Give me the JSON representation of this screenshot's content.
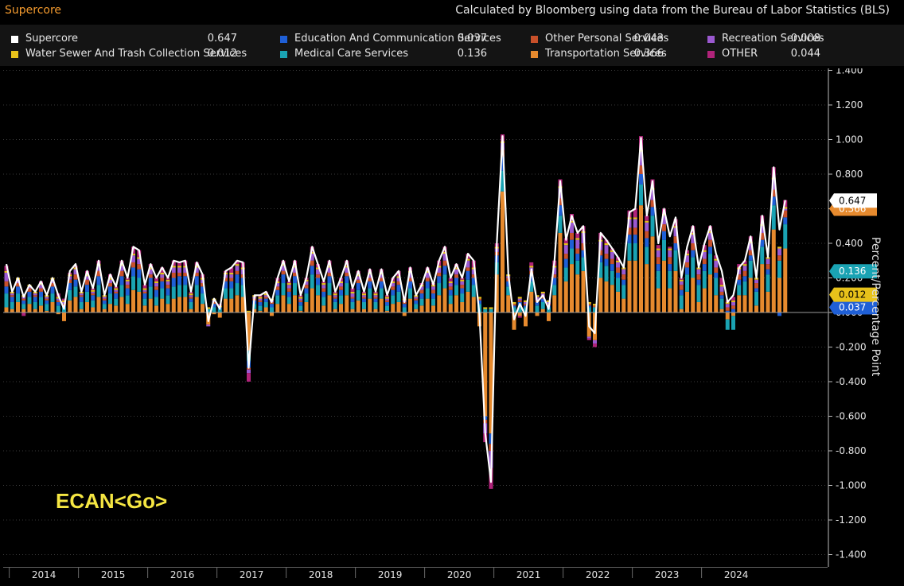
{
  "header": {
    "title": "Supercore",
    "subtitle": "Calculated by Bloomberg using data from the Bureau of Labor Statistics (BLS)"
  },
  "legend": [
    {
      "label": "Supercore",
      "value": "0.647",
      "color": "#ffffff"
    },
    {
      "label": "Education And Communication Services",
      "value": "0.037",
      "color": "#1f5fd6"
    },
    {
      "label": "Other Personal Services",
      "value": "0.043",
      "color": "#c8502a"
    },
    {
      "label": "Recreation Services",
      "value": "0.008",
      "color": "#9b59d0"
    },
    {
      "label": "Water Sewer And Trash Collection Services",
      "value": "0.012",
      "color": "#e8c21a"
    },
    {
      "label": "Medical Care Services",
      "value": "0.136",
      "color": "#1aa3b3"
    },
    {
      "label": "Transportation Services",
      "value": "0.366",
      "color": "#e68a2e"
    },
    {
      "label": "OTHER",
      "value": "0.044",
      "color": "#b0237a"
    }
  ],
  "watermark": "ECAN<Go>",
  "chart_data": {
    "type": "bar",
    "title": "Supercore",
    "ylabel": "Percent/Percentage Point",
    "ylim": [
      -1.4,
      1.4
    ],
    "yticks": [
      "1.400",
      "1.200",
      "1.000",
      "0.800",
      "0.600",
      "0.400",
      "0.200",
      "0.000",
      "-0.200",
      "-0.400",
      "-0.600",
      "-0.800",
      "-1.000",
      "-1.200",
      "-1.400"
    ],
    "x_tick_labels": [
      "2014",
      "2015",
      "2016",
      "2017",
      "2018",
      "2019",
      "2020",
      "2021",
      "2022",
      "2023",
      "2024"
    ],
    "x_start": "2013-12",
    "last_values": {
      "Supercore": 0.647,
      "Transportation Services": 0.366,
      "Medical Care Services": 0.136,
      "Water Sewer And Trash Collection Services": 0.012,
      "Education And Communication Services": 0.037
    },
    "supercore": [
      0.28,
      0.12,
      0.2,
      0.09,
      0.16,
      0.12,
      0.18,
      0.1,
      0.2,
      0.1,
      0.02,
      0.24,
      0.28,
      0.12,
      0.24,
      0.14,
      0.3,
      0.1,
      0.22,
      0.15,
      0.3,
      0.2,
      0.38,
      0.36,
      0.16,
      0.28,
      0.2,
      0.26,
      0.2,
      0.3,
      0.29,
      0.3,
      0.12,
      0.29,
      0.22,
      -0.05,
      0.08,
      0.02,
      0.24,
      0.26,
      0.3,
      0.29,
      -0.32,
      0.1,
      0.1,
      0.12,
      0.06,
      0.2,
      0.3,
      0.18,
      0.3,
      0.1,
      0.2,
      0.38,
      0.28,
      0.18,
      0.3,
      0.12,
      0.2,
      0.3,
      0.14,
      0.24,
      0.12,
      0.25,
      0.12,
      0.25,
      0.1,
      0.2,
      0.24,
      0.06,
      0.26,
      0.1,
      0.16,
      0.26,
      0.16,
      0.3,
      0.38,
      0.2,
      0.28,
      0.2,
      0.34,
      0.3,
      -0.01,
      -0.7,
      -0.98,
      0.4,
      1.02,
      0.22,
      -0.04,
      0.05,
      -0.02,
      0.25,
      0.06,
      0.1,
      0.02,
      0.3,
      0.76,
      0.42,
      0.56,
      0.46,
      0.5,
      -0.08,
      -0.12,
      0.46,
      0.42,
      0.37,
      0.32,
      0.26,
      0.58,
      0.6,
      1.01,
      0.56,
      0.76,
      0.4,
      0.6,
      0.44,
      0.55,
      0.2,
      0.38,
      0.5,
      0.26,
      0.4,
      0.5,
      0.34,
      0.24,
      0.06,
      0.1,
      0.26,
      0.3,
      0.44,
      0.2,
      0.56,
      0.32,
      0.84,
      0.48,
      0.65
    ],
    "series": [
      {
        "name": "Transportation Services",
        "color": "#e68a2e",
        "values": [
          0.03,
          0.02,
          0.06,
          0.02,
          0.05,
          0.02,
          0.04,
          0.01,
          0.06,
          -0.01,
          -0.05,
          0.07,
          0.09,
          0.02,
          0.06,
          0.03,
          0.09,
          0.02,
          0.05,
          0.04,
          0.09,
          0.05,
          0.13,
          0.12,
          0.04,
          0.08,
          0.04,
          0.08,
          0.05,
          0.08,
          0.09,
          0.09,
          0.02,
          0.09,
          0.05,
          -0.07,
          -0.01,
          -0.03,
          0.08,
          0.08,
          0.1,
          0.09,
          -0.22,
          0.02,
          0.01,
          0.03,
          -0.02,
          0.05,
          0.1,
          0.05,
          0.1,
          0.01,
          0.06,
          0.14,
          0.1,
          0.04,
          0.1,
          0.02,
          0.05,
          0.1,
          0.02,
          0.07,
          0.02,
          0.08,
          0.02,
          0.08,
          0.01,
          0.05,
          0.06,
          -0.02,
          0.08,
          0.02,
          0.04,
          0.08,
          0.04,
          0.1,
          0.14,
          0.05,
          0.1,
          0.06,
          0.12,
          0.09,
          -0.08,
          -0.6,
          -0.7,
          0.22,
          0.7,
          0.1,
          -0.1,
          -0.02,
          -0.08,
          0.12,
          -0.02,
          0.02,
          -0.05,
          0.1,
          0.46,
          0.18,
          0.28,
          0.22,
          0.24,
          -0.14,
          -0.16,
          0.2,
          0.18,
          0.16,
          0.12,
          0.08,
          0.3,
          0.3,
          0.62,
          0.28,
          0.44,
          0.14,
          0.3,
          0.14,
          0.24,
          0.02,
          0.12,
          0.2,
          0.06,
          0.14,
          0.22,
          0.1,
          0.02,
          -0.04,
          -0.02,
          0.1,
          0.1,
          0.2,
          0.04,
          0.28,
          0.12,
          0.48,
          0.2,
          0.37
        ]
      },
      {
        "name": "Medical Care Services",
        "color": "#1aa3b3",
        "values": [
          0.08,
          0.04,
          0.05,
          0.03,
          0.04,
          0.04,
          0.05,
          0.04,
          0.05,
          0.04,
          0.03,
          0.06,
          0.06,
          0.04,
          0.06,
          0.04,
          0.07,
          0.03,
          0.06,
          0.04,
          0.07,
          0.05,
          0.08,
          0.08,
          0.04,
          0.07,
          0.05,
          0.06,
          0.05,
          0.07,
          0.07,
          0.07,
          0.04,
          0.07,
          0.06,
          0.02,
          0.03,
          0.02,
          0.06,
          0.06,
          0.07,
          0.07,
          -0.06,
          0.03,
          0.03,
          0.03,
          0.03,
          0.05,
          0.07,
          0.04,
          0.07,
          0.03,
          0.05,
          0.08,
          0.06,
          0.05,
          0.07,
          0.04,
          0.05,
          0.07,
          0.04,
          0.06,
          0.04,
          0.06,
          0.04,
          0.06,
          0.03,
          0.05,
          0.06,
          0.03,
          0.06,
          0.03,
          0.04,
          0.06,
          0.04,
          0.07,
          0.08,
          0.05,
          0.06,
          0.05,
          0.07,
          0.07,
          0.05,
          0.02,
          0.02,
          0.07,
          0.12,
          0.05,
          0.03,
          0.04,
          0.03,
          0.06,
          0.04,
          0.04,
          0.03,
          0.06,
          0.1,
          0.08,
          0.09,
          0.08,
          0.08,
          0.03,
          0.03,
          0.09,
          0.09,
          0.08,
          0.08,
          0.08,
          0.1,
          0.1,
          0.12,
          0.1,
          0.12,
          0.1,
          0.12,
          0.1,
          0.12,
          0.08,
          0.1,
          0.12,
          0.1,
          0.1,
          0.12,
          0.1,
          0.06,
          -0.06,
          -0.08,
          0.06,
          0.08,
          0.1,
          0.08,
          0.1,
          0.1,
          0.14,
          0.1,
          0.14
        ]
      },
      {
        "name": "Education And Communication Services",
        "color": "#1f5fd6",
        "values": [
          0.04,
          0.03,
          0.04,
          0.02,
          0.03,
          0.03,
          0.03,
          0.02,
          0.04,
          0.02,
          0.01,
          0.04,
          0.04,
          0.03,
          0.04,
          0.03,
          0.05,
          0.02,
          0.04,
          0.03,
          0.05,
          0.04,
          0.05,
          0.05,
          0.03,
          0.05,
          0.04,
          0.04,
          0.04,
          0.05,
          0.05,
          0.05,
          0.02,
          0.05,
          0.04,
          0.0,
          0.02,
          0.01,
          0.04,
          0.04,
          0.05,
          0.04,
          -0.04,
          0.02,
          0.02,
          0.02,
          0.02,
          0.03,
          0.05,
          0.03,
          0.04,
          0.02,
          0.03,
          0.05,
          0.04,
          0.03,
          0.04,
          0.02,
          0.03,
          0.04,
          0.02,
          0.04,
          0.02,
          0.04,
          0.02,
          0.04,
          0.02,
          0.03,
          0.04,
          0.02,
          0.04,
          0.02,
          0.03,
          0.04,
          0.03,
          0.04,
          0.05,
          0.03,
          0.04,
          0.03,
          0.05,
          0.04,
          0.02,
          -0.02,
          -0.06,
          0.04,
          0.08,
          0.03,
          0.01,
          0.02,
          0.01,
          0.04,
          0.02,
          0.02,
          0.01,
          0.04,
          0.06,
          0.05,
          0.05,
          0.04,
          0.04,
          0.01,
          0.0,
          0.04,
          0.04,
          0.04,
          0.03,
          0.03,
          0.05,
          0.05,
          0.06,
          0.05,
          0.05,
          0.04,
          0.05,
          0.04,
          0.04,
          0.03,
          0.04,
          0.04,
          0.03,
          0.04,
          0.04,
          0.03,
          0.02,
          0.01,
          0.02,
          0.03,
          0.03,
          0.03,
          0.02,
          0.04,
          0.03,
          0.05,
          -0.02,
          0.04
        ]
      },
      {
        "name": "Other Personal Services",
        "color": "#c8502a",
        "values": [
          0.03,
          0.01,
          0.02,
          0.01,
          0.02,
          0.01,
          0.02,
          0.01,
          0.02,
          0.01,
          0.01,
          0.02,
          0.03,
          0.01,
          0.03,
          0.01,
          0.03,
          0.01,
          0.02,
          0.01,
          0.03,
          0.02,
          0.03,
          0.03,
          0.01,
          0.02,
          0.02,
          0.02,
          0.02,
          0.03,
          0.02,
          0.02,
          0.01,
          0.02,
          0.02,
          0.0,
          0.01,
          0.0,
          0.02,
          0.02,
          0.02,
          0.02,
          -0.01,
          0.01,
          0.01,
          0.01,
          0.01,
          0.02,
          0.02,
          0.02,
          0.02,
          0.01,
          0.02,
          0.03,
          0.02,
          0.02,
          0.02,
          0.01,
          0.02,
          0.02,
          0.01,
          0.02,
          0.01,
          0.02,
          0.01,
          0.02,
          0.01,
          0.02,
          0.02,
          0.01,
          0.02,
          0.01,
          0.02,
          0.02,
          0.02,
          0.02,
          0.03,
          0.02,
          0.02,
          0.02,
          0.02,
          0.02,
          0.01,
          -0.02,
          -0.04,
          0.02,
          0.04,
          0.02,
          0.01,
          0.01,
          0.01,
          0.02,
          0.01,
          0.01,
          0.01,
          0.02,
          0.04,
          0.03,
          0.04,
          0.03,
          0.04,
          0.01,
          0.01,
          0.03,
          0.03,
          0.03,
          0.03,
          0.03,
          0.04,
          0.04,
          0.05,
          0.04,
          0.04,
          0.04,
          0.04,
          0.04,
          0.04,
          0.03,
          0.03,
          0.04,
          0.03,
          0.03,
          0.04,
          0.03,
          0.02,
          0.02,
          0.02,
          0.03,
          0.03,
          0.03,
          0.03,
          0.04,
          0.03,
          0.04,
          0.03,
          0.04
        ]
      },
      {
        "name": "Recreation Services",
        "color": "#9b59d0",
        "values": [
          0.05,
          0.01,
          0.02,
          0.01,
          0.01,
          0.01,
          0.02,
          0.01,
          0.02,
          0.01,
          0.01,
          0.02,
          0.03,
          0.01,
          0.02,
          0.01,
          0.03,
          0.01,
          0.02,
          0.01,
          0.03,
          0.02,
          0.04,
          0.03,
          0.01,
          0.03,
          0.02,
          0.02,
          0.02,
          0.03,
          0.03,
          0.03,
          0.01,
          0.03,
          0.02,
          -0.01,
          0.01,
          0.0,
          0.02,
          0.02,
          0.03,
          0.03,
          -0.02,
          0.01,
          0.01,
          0.01,
          0.01,
          0.02,
          0.03,
          0.02,
          0.03,
          0.01,
          0.02,
          0.04,
          0.03,
          0.02,
          0.03,
          0.01,
          0.02,
          0.03,
          0.02,
          0.02,
          0.01,
          0.02,
          0.01,
          0.02,
          0.01,
          0.02,
          0.02,
          0.01,
          0.03,
          0.01,
          0.02,
          0.03,
          0.02,
          0.03,
          0.04,
          0.02,
          0.03,
          0.02,
          0.04,
          0.03,
          0.0,
          -0.06,
          -0.1,
          0.02,
          0.04,
          0.01,
          0.0,
          0.01,
          0.01,
          0.02,
          0.02,
          0.02,
          0.01,
          0.04,
          0.06,
          0.05,
          0.06,
          0.05,
          0.06,
          -0.01,
          -0.02,
          0.05,
          0.05,
          0.04,
          0.03,
          0.03,
          0.05,
          0.05,
          0.08,
          0.05,
          0.06,
          0.04,
          0.05,
          0.04,
          0.05,
          0.02,
          0.04,
          0.05,
          0.03,
          0.04,
          0.04,
          0.04,
          0.03,
          0.02,
          0.02,
          0.03,
          0.03,
          0.04,
          0.02,
          0.04,
          0.03,
          0.06,
          0.04,
          0.01
        ]
      },
      {
        "name": "Water Sewer And Trash Collection Services",
        "color": "#e8c21a",
        "values": [
          0.01,
          0.01,
          0.01,
          0.01,
          0.01,
          0.01,
          0.01,
          0.01,
          0.01,
          0.01,
          0.01,
          0.01,
          0.01,
          0.01,
          0.01,
          0.01,
          0.01,
          0.01,
          0.01,
          0.01,
          0.01,
          0.01,
          0.01,
          0.01,
          0.01,
          0.01,
          0.01,
          0.01,
          0.01,
          0.01,
          0.01,
          0.01,
          0.01,
          0.01,
          0.01,
          0.01,
          0.01,
          0.01,
          0.01,
          0.01,
          0.01,
          0.01,
          0.01,
          0.01,
          0.01,
          0.01,
          0.01,
          0.01,
          0.01,
          0.01,
          0.01,
          0.01,
          0.01,
          0.01,
          0.01,
          0.01,
          0.01,
          0.01,
          0.01,
          0.01,
          0.01,
          0.01,
          0.01,
          0.01,
          0.01,
          0.01,
          0.01,
          0.01,
          0.01,
          0.01,
          0.01,
          0.01,
          0.01,
          0.01,
          0.01,
          0.01,
          0.01,
          0.01,
          0.01,
          0.01,
          0.01,
          0.01,
          0.01,
          0.01,
          0.01,
          0.01,
          0.01,
          0.01,
          0.01,
          0.01,
          0.01,
          0.01,
          0.01,
          0.01,
          0.01,
          0.01,
          0.01,
          0.01,
          0.01,
          0.01,
          0.01,
          0.01,
          0.01,
          0.01,
          0.01,
          0.01,
          0.01,
          0.01,
          0.01,
          0.01,
          0.01,
          0.01,
          0.01,
          0.01,
          0.01,
          0.01,
          0.01,
          0.01,
          0.01,
          0.01,
          0.01,
          0.01,
          0.01,
          0.01,
          0.01,
          0.01,
          0.01,
          0.01,
          0.01,
          0.01,
          0.01,
          0.01,
          0.01,
          0.01,
          0.01,
          0.01
        ]
      },
      {
        "name": "OTHER",
        "color": "#b0237a",
        "values": [
          0.03,
          0.0,
          0.0,
          -0.02,
          0.0,
          0.0,
          0.01,
          0.0,
          0.0,
          0.02,
          0.01,
          0.01,
          0.01,
          0.0,
          0.02,
          0.01,
          0.02,
          0.0,
          0.02,
          0.01,
          0.02,
          0.01,
          0.04,
          0.04,
          0.02,
          0.02,
          0.02,
          0.03,
          0.01,
          0.03,
          0.02,
          0.03,
          0.01,
          0.02,
          0.02,
          0.0,
          0.0,
          0.01,
          0.01,
          0.03,
          0.02,
          0.03,
          -0.05,
          0.0,
          0.01,
          0.01,
          0.0,
          0.02,
          0.02,
          0.01,
          0.03,
          0.01,
          0.01,
          0.03,
          0.02,
          0.01,
          0.03,
          0.01,
          0.02,
          0.03,
          0.02,
          0.02,
          0.01,
          0.02,
          0.01,
          0.02,
          0.01,
          0.02,
          0.03,
          0.01,
          0.02,
          0.0,
          0.01,
          0.02,
          0.01,
          0.03,
          0.03,
          0.02,
          0.02,
          0.01,
          0.03,
          0.04,
          0.0,
          -0.05,
          -0.12,
          0.02,
          0.04,
          0.0,
          0.0,
          -0.01,
          0.0,
          0.02,
          0.0,
          0.0,
          0.0,
          0.03,
          0.04,
          0.03,
          0.04,
          0.03,
          0.03,
          -0.01,
          -0.02,
          0.04,
          0.02,
          0.01,
          0.02,
          0.0,
          0.04,
          0.05,
          0.08,
          0.03,
          0.05,
          0.02,
          0.03,
          0.01,
          0.04,
          0.01,
          0.02,
          0.04,
          0.0,
          0.03,
          0.03,
          0.02,
          0.04,
          0.01,
          0.02,
          0.02,
          0.02,
          0.03,
          0.0,
          0.05,
          0.0,
          0.06,
          0.0,
          0.04
        ]
      }
    ]
  }
}
